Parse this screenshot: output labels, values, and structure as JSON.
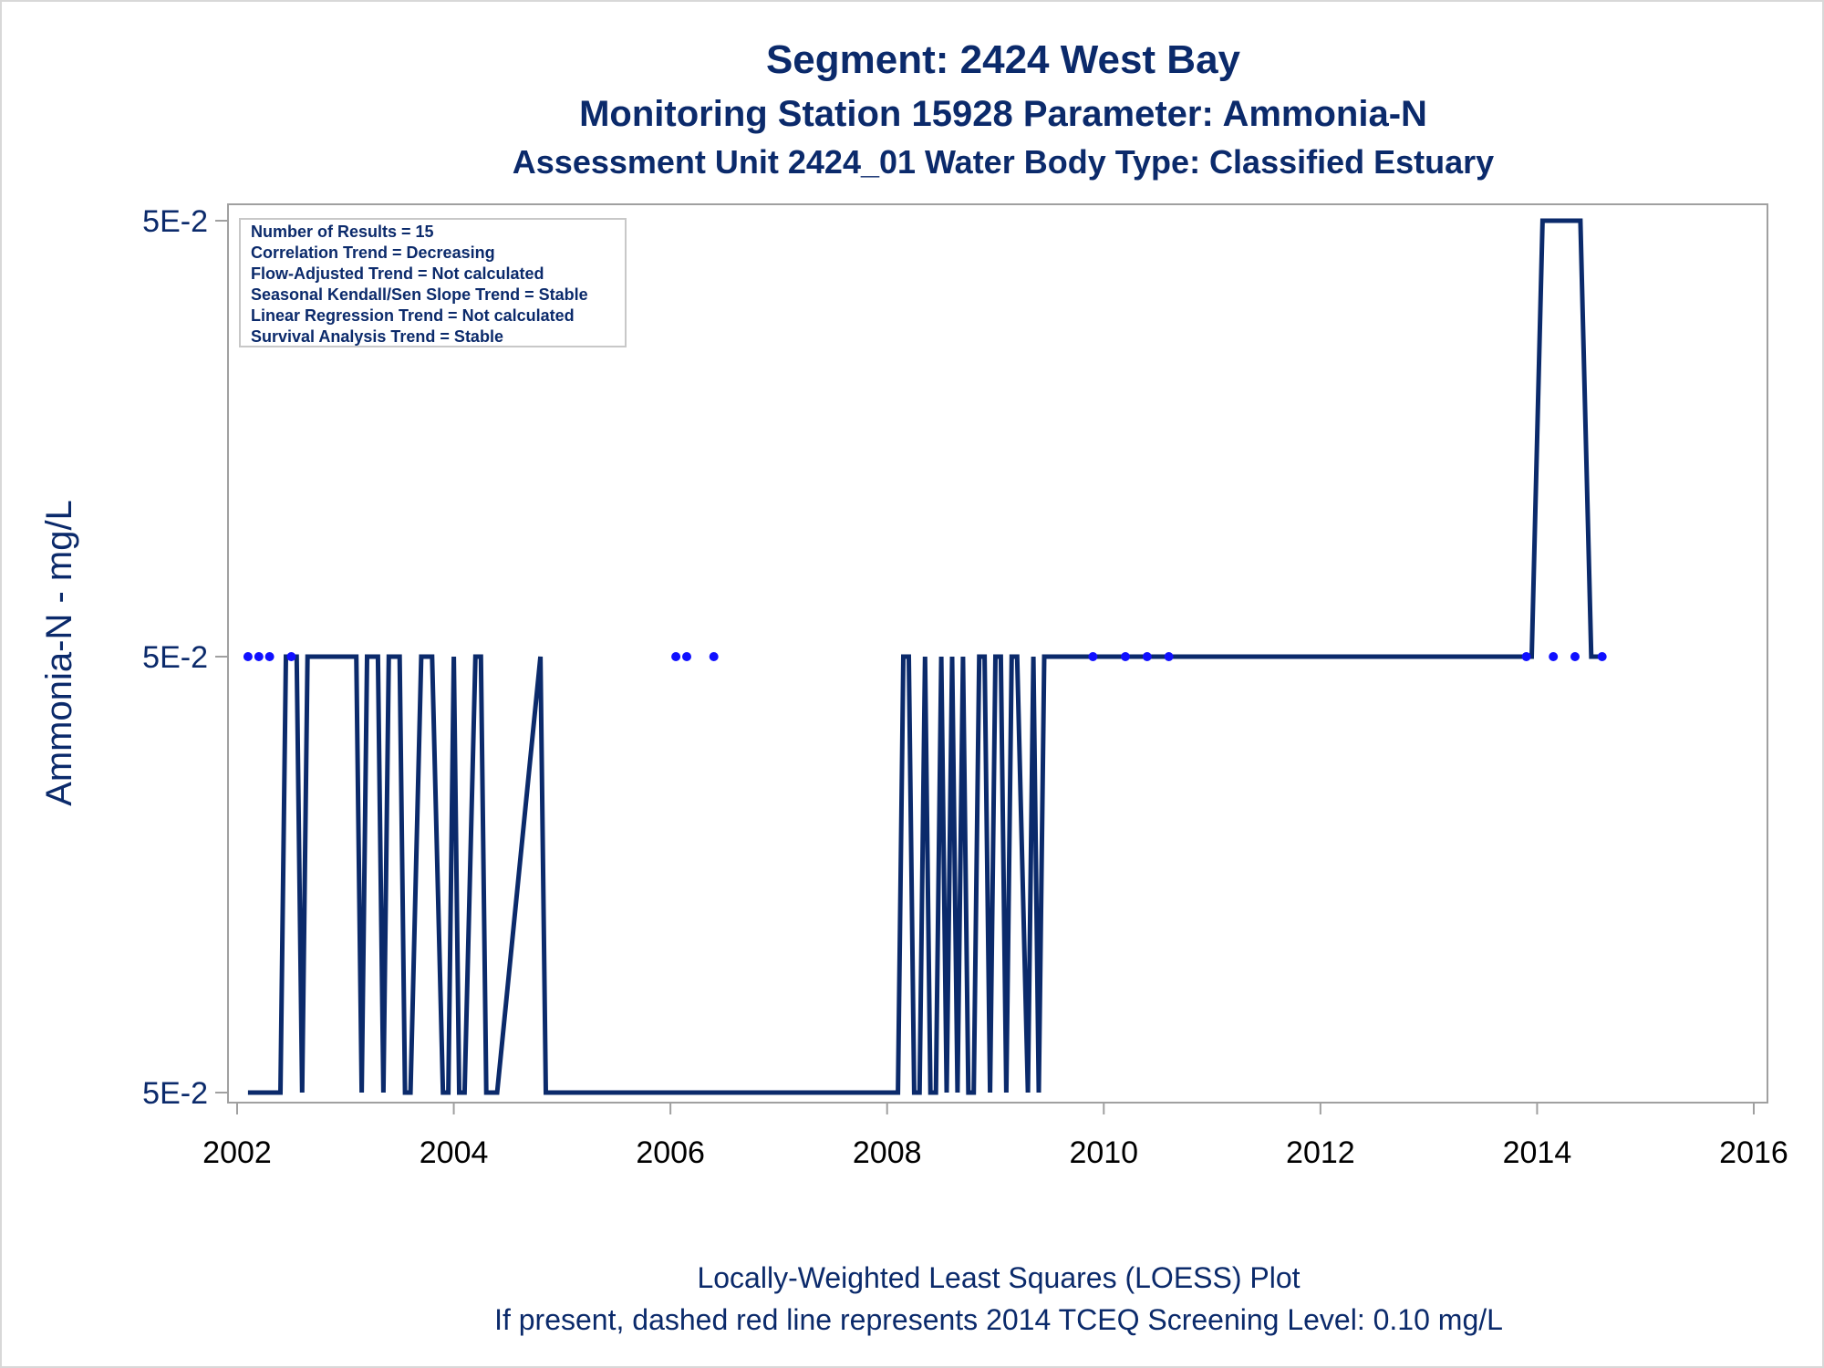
{
  "titles": {
    "line1": "Segment: 2424  West Bay",
    "line2": "Monitoring Station 15928 Parameter: Ammonia-N",
    "line3": "Assessment Unit 2424_01    Water Body Type: Classified Estuary"
  },
  "inset": {
    "lines": [
      "Number of Results = 15",
      "Correlation Trend = Decreasing",
      "Flow-Adjusted Trend = Not calculated",
      "Seasonal Kendall/Sen Slope Trend = Stable",
      "Linear Regression Trend = Not calculated",
      "Survival Analysis Trend = Stable"
    ]
  },
  "footnotes": {
    "line1": "Locally-Weighted Least Squares (LOESS) Plot",
    "line2": "If present, dashed red line represents 2014 TCEQ Screening Level: 0.10 mg/L"
  },
  "colors": {
    "line": "#0b2a6b",
    "points": "#1010ff",
    "text": "#0b2a6b",
    "axis": "#a0a0a0"
  },
  "chart_data": {
    "type": "line",
    "xlabel": "",
    "ylabel": "Ammonia-N - mg/L",
    "xlim": [
      2002,
      2016
    ],
    "x_ticks": [
      2002,
      2004,
      2006,
      2008,
      2010,
      2012,
      2014,
      2016
    ],
    "y_ticks": [
      "5E-2",
      "5E-2",
      "5E-2"
    ],
    "y_scale_note": "three y tick labels all read 5E-2; line values given as level index 0 (bottom), 1 (middle), 2 (top)",
    "points": {
      "x": [
        2002.1,
        2002.2,
        2002.3,
        2002.5,
        2006.05,
        2006.15,
        2006.4,
        2009.9,
        2010.2,
        2010.4,
        2010.6,
        2013.9,
        2014.15,
        2014.35,
        2014.6
      ],
      "level": [
        1,
        1,
        1,
        1,
        1,
        1,
        1,
        1,
        1,
        1,
        1,
        1,
        1,
        1,
        1
      ]
    },
    "series": [
      {
        "x": [
          2002.1,
          2002.4,
          2002.45,
          2002.55,
          2002.6,
          2002.65,
          2002.7,
          2003.1,
          2003.15,
          2003.2,
          2003.3,
          2003.35,
          2003.4,
          2003.5,
          2003.55,
          2003.6,
          2003.7,
          2003.8,
          2003.9,
          2003.95,
          2004.0,
          2004.05,
          2004.1,
          2004.2,
          2004.25,
          2004.3,
          2004.4,
          2004.8,
          2004.85,
          2004.9,
          2008.1,
          2008.15,
          2008.2,
          2008.25,
          2008.3,
          2008.35,
          2008.4,
          2008.45,
          2008.5,
          2008.55,
          2008.6,
          2008.65,
          2008.7,
          2008.75,
          2008.8,
          2008.85,
          2008.9,
          2008.95,
          2009.0,
          2009.05,
          2009.1,
          2009.15,
          2009.2,
          2009.3,
          2009.35,
          2009.4,
          2009.45,
          2009.5,
          2013.95,
          2014.05,
          2014.4,
          2014.5,
          2014.6
        ],
        "level": [
          0,
          0,
          1,
          1,
          0,
          1,
          1,
          1,
          0,
          1,
          1,
          0,
          1,
          1,
          0,
          0,
          1,
          1,
          0,
          0,
          1,
          0,
          0,
          1,
          1,
          0,
          0,
          1,
          0,
          0,
          0,
          1,
          1,
          0,
          0,
          1,
          0,
          0,
          1,
          0,
          1,
          0,
          1,
          0,
          0,
          1,
          1,
          0,
          1,
          1,
          0,
          1,
          1,
          0,
          1,
          0,
          1,
          1,
          1,
          2,
          2,
          1,
          1
        ]
      }
    ]
  }
}
